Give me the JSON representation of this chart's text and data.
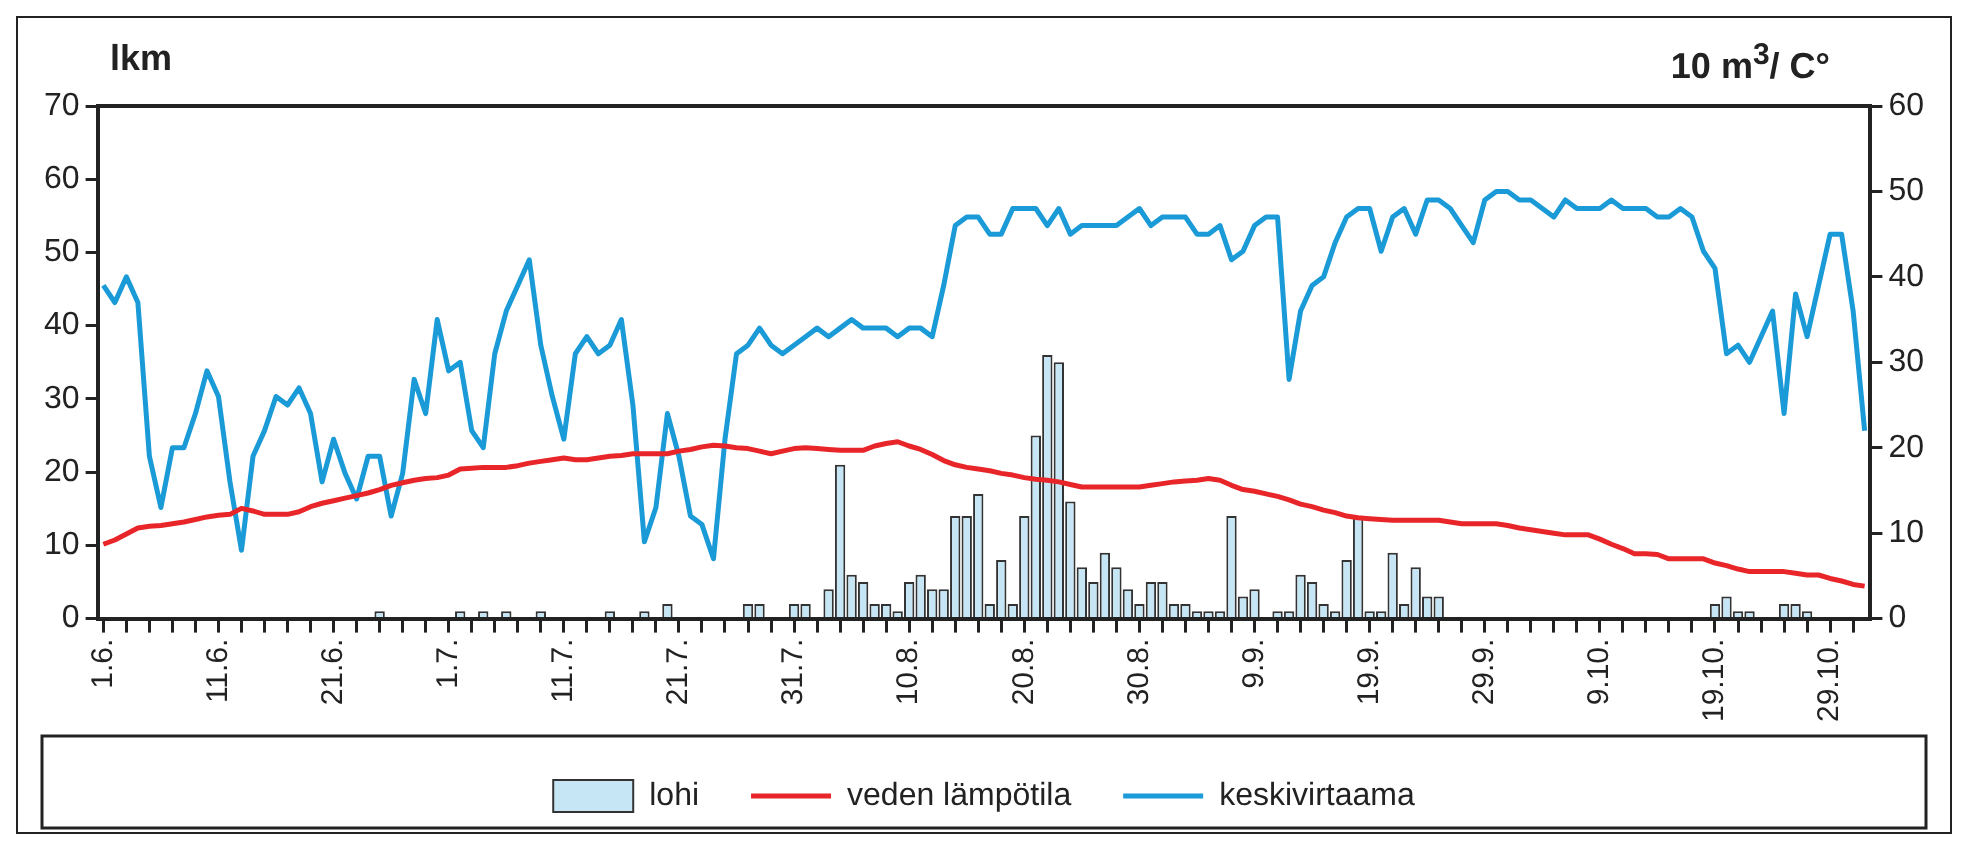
{
  "chart_data": {
    "type": "bar",
    "ylabel": "lkm",
    "y2label": "10 m$^{3}$/ C°",
    "categories": [
      "1.6.",
      null,
      null,
      null,
      null,
      null,
      null,
      null,
      null,
      null,
      "11.6.",
      null,
      null,
      null,
      null,
      null,
      null,
      null,
      null,
      null,
      "21.6.",
      null,
      null,
      null,
      null,
      null,
      null,
      null,
      null,
      null,
      "1.7.",
      null,
      null,
      null,
      null,
      null,
      null,
      null,
      null,
      null,
      "11.7.",
      null,
      null,
      null,
      null,
      null,
      null,
      null,
      null,
      null,
      "21.7.",
      null,
      null,
      null,
      null,
      null,
      null,
      null,
      null,
      null,
      "31.7.",
      null,
      null,
      null,
      null,
      null,
      null,
      null,
      null,
      null,
      "10.8.",
      null,
      null,
      null,
      null,
      null,
      null,
      null,
      null,
      null,
      "20.8.",
      null,
      null,
      null,
      null,
      null,
      null,
      null,
      null,
      null,
      "30.8.",
      null,
      null,
      null,
      null,
      null,
      null,
      null,
      null,
      null,
      "9.9.",
      null,
      null,
      null,
      null,
      null,
      null,
      null,
      null,
      null,
      "19.9.",
      null,
      null,
      null,
      null,
      null,
      null,
      null,
      null,
      null,
      "29.9.",
      null,
      null,
      null,
      null,
      null,
      null,
      null,
      null,
      null,
      "9.10.",
      null,
      null,
      null,
      null,
      null,
      null,
      null,
      null,
      null,
      "19.10.",
      null,
      null,
      null,
      null,
      null,
      null,
      null,
      null,
      null,
      "29.10.",
      null,
      null,
      null
    ],
    "series": [
      {
        "name": "lohi",
        "color": "#c6e6f5",
        "values": [
          0,
          0,
          0,
          0,
          0,
          0,
          0,
          0,
          0,
          0,
          0,
          0,
          0,
          0,
          0,
          0,
          0,
          0,
          0,
          0,
          0,
          0,
          0,
          0,
          1,
          0,
          0,
          0,
          0,
          0,
          0,
          1,
          0,
          1,
          0,
          1,
          0,
          0,
          1,
          0,
          0,
          0,
          0,
          0,
          1,
          0,
          0,
          1,
          0,
          2,
          0,
          0,
          0,
          0,
          0,
          0,
          2,
          2,
          0,
          0,
          2,
          2,
          0,
          4,
          21,
          6,
          5,
          2,
          2,
          1,
          5,
          6,
          4,
          4,
          14,
          14,
          17,
          2,
          8,
          2,
          14,
          25,
          36,
          35,
          16,
          7,
          5,
          9,
          7,
          4,
          2,
          5,
          5,
          2,
          2,
          1,
          1,
          1,
          14,
          3,
          4,
          0,
          1,
          1,
          6,
          5,
          2,
          1,
          8,
          14,
          1,
          1,
          9,
          2,
          7,
          3,
          3,
          0,
          0,
          0,
          0,
          0,
          0,
          0,
          0,
          0,
          0,
          0,
          0,
          0,
          0,
          0,
          0,
          0,
          0,
          0,
          0,
          0,
          0,
          0,
          2,
          3,
          1,
          1,
          0,
          0,
          2,
          2,
          1,
          0,
          0,
          0,
          0,
          0
        ]
      },
      {
        "name": "veden lämpötila",
        "type": "line",
        "axis": "y2",
        "color": "#e8262a",
        "values": [
          8.7,
          9.2,
          9.9,
          10.6,
          10.8,
          10.9,
          11.1,
          11.3,
          11.6,
          11.9,
          12.1,
          12.2,
          12.9,
          12.6,
          12.2,
          12.2,
          12.2,
          12.5,
          13.1,
          13.5,
          13.8,
          14.1,
          14.4,
          14.7,
          15.1,
          15.6,
          15.9,
          16.2,
          16.4,
          16.5,
          16.8,
          17.5,
          17.6,
          17.7,
          17.7,
          17.7,
          17.9,
          18.2,
          18.4,
          18.6,
          18.8,
          18.6,
          18.6,
          18.8,
          19.0,
          19.1,
          19.3,
          19.3,
          19.3,
          19.3,
          19.6,
          19.8,
          20.1,
          20.3,
          20.2,
          20.0,
          19.9,
          19.6,
          19.3,
          19.6,
          19.9,
          20.0,
          19.9,
          19.8,
          19.7,
          19.7,
          19.7,
          20.2,
          20.5,
          20.7,
          20.2,
          19.8,
          19.2,
          18.5,
          18.0,
          17.7,
          17.5,
          17.3,
          17.0,
          16.8,
          16.5,
          16.3,
          16.2,
          16.0,
          15.7,
          15.4,
          15.4,
          15.4,
          15.4,
          15.4,
          15.4,
          15.6,
          15.8,
          16.0,
          16.1,
          16.2,
          16.4,
          16.2,
          15.6,
          15.1,
          14.9,
          14.6,
          14.3,
          13.9,
          13.4,
          13.1,
          12.7,
          12.4,
          12.0,
          11.8,
          11.7,
          11.6,
          11.5,
          11.5,
          11.5,
          11.5,
          11.5,
          11.3,
          11.1,
          11.1,
          11.1,
          11.1,
          10.9,
          10.6,
          10.4,
          10.2,
          10.0,
          9.8,
          9.8,
          9.8,
          9.3,
          8.7,
          8.2,
          7.6,
          7.6,
          7.5,
          7.0,
          7.0,
          7.0,
          7.0,
          6.5,
          6.2,
          5.8,
          5.5,
          5.5,
          5.5,
          5.5,
          5.3,
          5.1,
          5.1,
          4.7,
          4.4,
          4.0,
          3.8
        ]
      },
      {
        "name": "keskivirtaama",
        "type": "line",
        "axis": "y2",
        "color": "#1a9ad6",
        "values": [
          39,
          37,
          40,
          37,
          19,
          13,
          20,
          20,
          24,
          29,
          26,
          16,
          8,
          19,
          22,
          26,
          25,
          27,
          24,
          16,
          21,
          17,
          14,
          19,
          19,
          12,
          17,
          28,
          24,
          35,
          29,
          30,
          22,
          20,
          31,
          36,
          39,
          42,
          32,
          26,
          21,
          31,
          33,
          31,
          32,
          35,
          25,
          9,
          13,
          24,
          19,
          12,
          11,
          7,
          21,
          31,
          32,
          34,
          32,
          31,
          32,
          33,
          34,
          33,
          34,
          35,
          34,
          34,
          34,
          33,
          34,
          34,
          33,
          39,
          46,
          47,
          47,
          45,
          45,
          48,
          48,
          48,
          46,
          48,
          45,
          46,
          46,
          46,
          46,
          47,
          48,
          46,
          47,
          47,
          47,
          45,
          45,
          46,
          42,
          43,
          46,
          47,
          47,
          28,
          36,
          39,
          40,
          44,
          47,
          48,
          48,
          43,
          47,
          48,
          45,
          49,
          49,
          48,
          46,
          44,
          49,
          50,
          50,
          49,
          49,
          48,
          47,
          49,
          48,
          48,
          48,
          49,
          48,
          48,
          48,
          47,
          47,
          48,
          47,
          43,
          41,
          31,
          32,
          30,
          33,
          36,
          24,
          38,
          33,
          39,
          45,
          45,
          36,
          22
        ]
      }
    ],
    "ylim": [
      0,
      70
    ],
    "yticks": [
      0,
      10,
      20,
      30,
      40,
      50,
      60,
      70
    ],
    "y2lim": [
      0,
      60
    ],
    "y2ticks": [
      0,
      10,
      20,
      30,
      40,
      50,
      60
    ],
    "grid": false,
    "legend": "bottom",
    "marker": "none",
    "line_style": "solid"
  }
}
